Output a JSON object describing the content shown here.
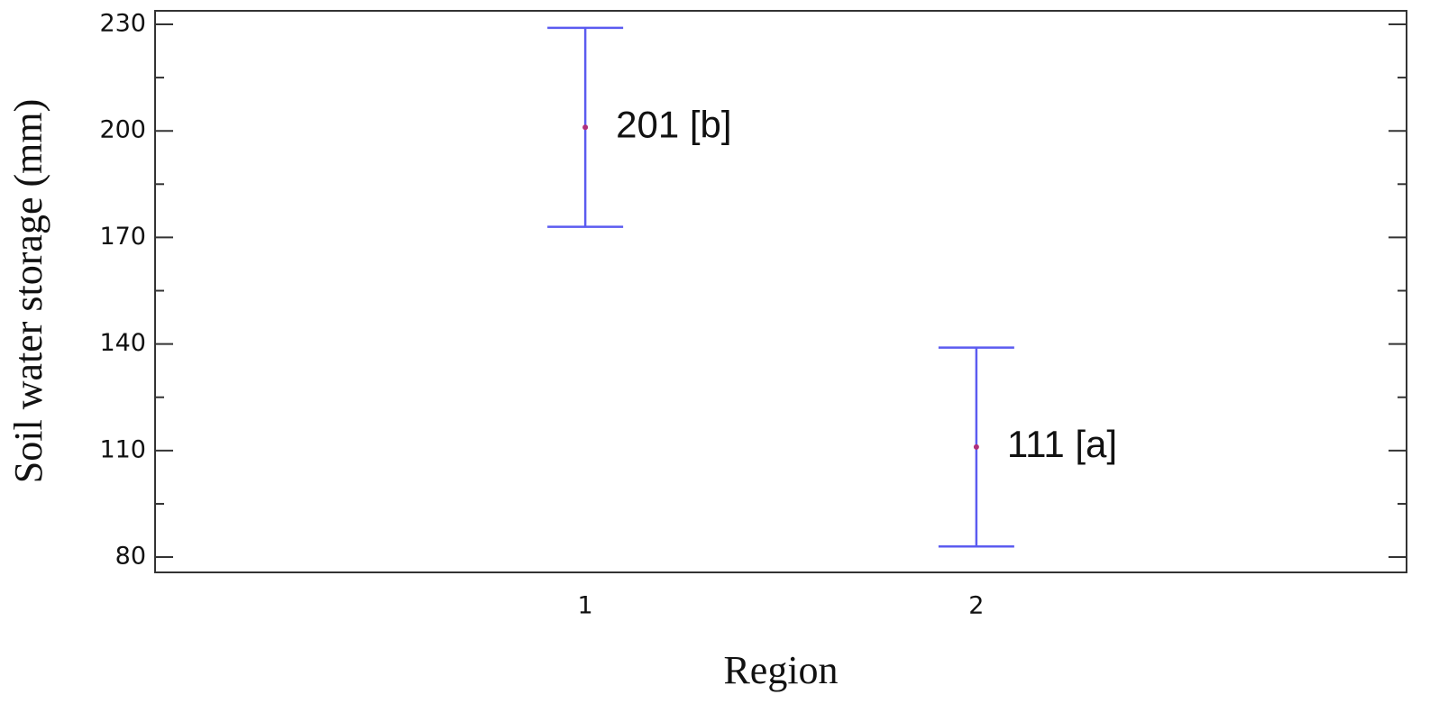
{
  "chart_data": {
    "type": "errorbar",
    "x": [
      1,
      2
    ],
    "values": [
      201,
      111
    ],
    "errors": [
      28,
      28
    ],
    "value_labels": [
      "201 [b]",
      "111 [a]"
    ],
    "color": "#5b5bf0",
    "point_color": "#b0307a",
    "xlabel": "Region",
    "ylabel": "Soil water storage (mm)",
    "xlim": [
      -0.1,
      3.1
    ],
    "xticks": [
      1,
      2
    ],
    "ylim": [
      75.7,
      233.8
    ],
    "yticks": [
      80,
      110,
      140,
      170,
      200,
      230
    ],
    "yminor": [
      95,
      125,
      155,
      185,
      215
    ],
    "grid": false
  }
}
